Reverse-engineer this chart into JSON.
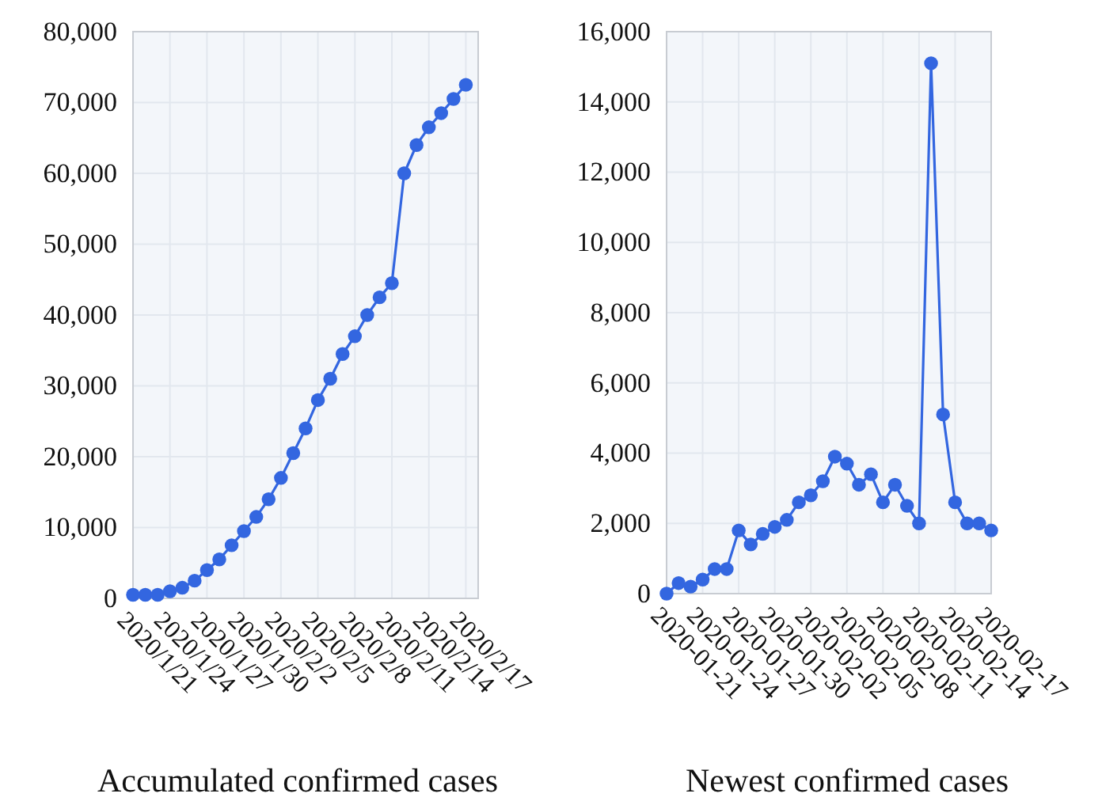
{
  "chart_data": [
    {
      "type": "line",
      "title": "Accumulated confirmed cases",
      "x": [
        "2020-01-21",
        "2020-01-22",
        "2020-01-23",
        "2020-01-24",
        "2020-01-25",
        "2020-01-26",
        "2020-01-27",
        "2020-01-28",
        "2020-01-29",
        "2020-01-30",
        "2020-01-31",
        "2020-02-01",
        "2020-02-02",
        "2020-02-03",
        "2020-02-04",
        "2020-02-05",
        "2020-02-06",
        "2020-02-07",
        "2020-02-08",
        "2020-02-09",
        "2020-02-10",
        "2020-02-11",
        "2020-02-12",
        "2020-02-13",
        "2020-02-14",
        "2020-02-15",
        "2020-02-16",
        "2020-02-17"
      ],
      "series": [
        {
          "color": "#3366e0",
          "values": [
            500,
            500,
            500,
            1000,
            1500,
            2500,
            4000,
            5500,
            7500,
            9500,
            11500,
            14000,
            17000,
            20500,
            24000,
            28000,
            31000,
            34500,
            37000,
            40000,
            42500,
            44500,
            60000,
            64000,
            66500,
            68500,
            70500,
            72500
          ]
        }
      ],
      "xlim": [
        "2020-01-21",
        "2020-02-18"
      ],
      "xticks": [
        {
          "value": "2020-01-21",
          "label": "2020/1/21"
        },
        {
          "value": "2020-01-24",
          "label": "2020/1/24"
        },
        {
          "value": "2020-01-27",
          "label": "2020/1/27"
        },
        {
          "value": "2020-01-30",
          "label": "2020/1/30"
        },
        {
          "value": "2020-02-02",
          "label": "2020/2/2"
        },
        {
          "value": "2020-02-05",
          "label": "2020/2/5"
        },
        {
          "value": "2020-02-08",
          "label": "2020/2/8"
        },
        {
          "value": "2020-02-11",
          "label": "2020/2/11"
        },
        {
          "value": "2020-02-14",
          "label": "2020/2/14"
        },
        {
          "value": "2020-02-17",
          "label": "2020/2/17"
        }
      ],
      "ylim": [
        0,
        80000
      ],
      "yticks": [
        {
          "value": 0,
          "label": "0"
        },
        {
          "value": 10000,
          "label": "10,000"
        },
        {
          "value": 20000,
          "label": "20,000"
        },
        {
          "value": 30000,
          "label": "30,000"
        },
        {
          "value": 40000,
          "label": "40,000"
        },
        {
          "value": 50000,
          "label": "50,000"
        },
        {
          "value": 60000,
          "label": "60,000"
        },
        {
          "value": 70000,
          "label": "70,000"
        },
        {
          "value": 80000,
          "label": "80,000"
        }
      ],
      "grid": true,
      "marker": "circle",
      "line_style": "solid"
    },
    {
      "type": "line",
      "title": "Newest confirmed cases",
      "x": [
        "2020-01-21",
        "2020-01-22",
        "2020-01-23",
        "2020-01-24",
        "2020-01-25",
        "2020-01-26",
        "2020-01-27",
        "2020-01-28",
        "2020-01-29",
        "2020-01-30",
        "2020-01-31",
        "2020-02-01",
        "2020-02-02",
        "2020-02-03",
        "2020-02-04",
        "2020-02-05",
        "2020-02-06",
        "2020-02-07",
        "2020-02-08",
        "2020-02-09",
        "2020-02-10",
        "2020-02-11",
        "2020-02-12",
        "2020-02-13",
        "2020-02-14",
        "2020-02-15",
        "2020-02-16",
        "2020-02-17"
      ],
      "series": [
        {
          "color": "#3366e0",
          "values": [
            0,
            300,
            200,
            400,
            700,
            700,
            1800,
            1400,
            1700,
            1900,
            2100,
            2600,
            2800,
            3200,
            3900,
            3700,
            3100,
            3400,
            2600,
            3100,
            2500,
            2000,
            15100,
            5100,
            2600,
            2000,
            2000,
            1800
          ]
        }
      ],
      "xlim": [
        "2020-01-21",
        "2020-02-17"
      ],
      "xticks": [
        {
          "value": "2020-01-21",
          "label": "2020-01-21"
        },
        {
          "value": "2020-01-24",
          "label": "2020-01-24"
        },
        {
          "value": "2020-01-27",
          "label": "2020-01-27"
        },
        {
          "value": "2020-01-30",
          "label": "2020-01-30"
        },
        {
          "value": "2020-02-02",
          "label": "2020-02-02"
        },
        {
          "value": "2020-02-05",
          "label": "2020-02-05"
        },
        {
          "value": "2020-02-08",
          "label": "2020-02-08"
        },
        {
          "value": "2020-02-11",
          "label": "2020-02-11"
        },
        {
          "value": "2020-02-14",
          "label": "2020-02-14"
        },
        {
          "value": "2020-02-17",
          "label": "2020-02-17"
        }
      ],
      "ylim": [
        0,
        16000
      ],
      "yticks": [
        {
          "value": 0,
          "label": "0"
        },
        {
          "value": 2000,
          "label": "2,000"
        },
        {
          "value": 4000,
          "label": "4,000"
        },
        {
          "value": 6000,
          "label": "6,000"
        },
        {
          "value": 8000,
          "label": "8,000"
        },
        {
          "value": 10000,
          "label": "10,000"
        },
        {
          "value": 12000,
          "label": "12,000"
        },
        {
          "value": 14000,
          "label": "14,000"
        },
        {
          "value": 16000,
          "label": "16,000"
        }
      ],
      "grid": true,
      "marker": "circle",
      "line_style": "solid"
    }
  ]
}
